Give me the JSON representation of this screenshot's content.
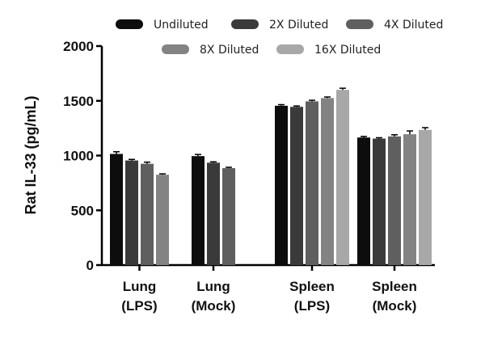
{
  "chart_data": {
    "type": "bar",
    "ylabel": "Rat IL-33 (pg/mL)",
    "xlabel": "",
    "ylim": [
      0,
      2000
    ],
    "yticks": [
      "0",
      "500",
      "1000",
      "1500",
      "2000"
    ],
    "grid": false,
    "legend_position": "top",
    "categories": [
      [
        "Lung",
        "(LPS)"
      ],
      [
        "Lung",
        "(Mock)"
      ],
      [
        "Spleen",
        "(LPS)"
      ],
      [
        "Spleen",
        "(Mock)"
      ]
    ],
    "series": [
      {
        "name": "Undiluted",
        "color": "#0d0d0d",
        "values": [
          1015,
          995,
          1455,
          1165
        ],
        "errors": [
          20,
          15,
          10,
          10
        ]
      },
      {
        "name": "2X Diluted",
        "color": "#3a3a3a",
        "values": [
          955,
          935,
          1445,
          1155
        ],
        "errors": [
          10,
          8,
          8,
          8
        ]
      },
      {
        "name": "4X Diluted",
        "color": "#5f5f5f",
        "values": [
          925,
          885,
          1495,
          1175
        ],
        "errors": [
          15,
          8,
          10,
          15
        ]
      },
      {
        "name": "8X Diluted",
        "color": "#838383",
        "values": [
          825,
          null,
          1525,
          1195
        ],
        "errors": [
          8,
          null,
          10,
          30
        ]
      },
      {
        "name": "16X Diluted",
        "color": "#a8a8a8",
        "values": [
          null,
          null,
          1600,
          1235
        ],
        "errors": [
          null,
          null,
          15,
          20
        ]
      }
    ]
  }
}
